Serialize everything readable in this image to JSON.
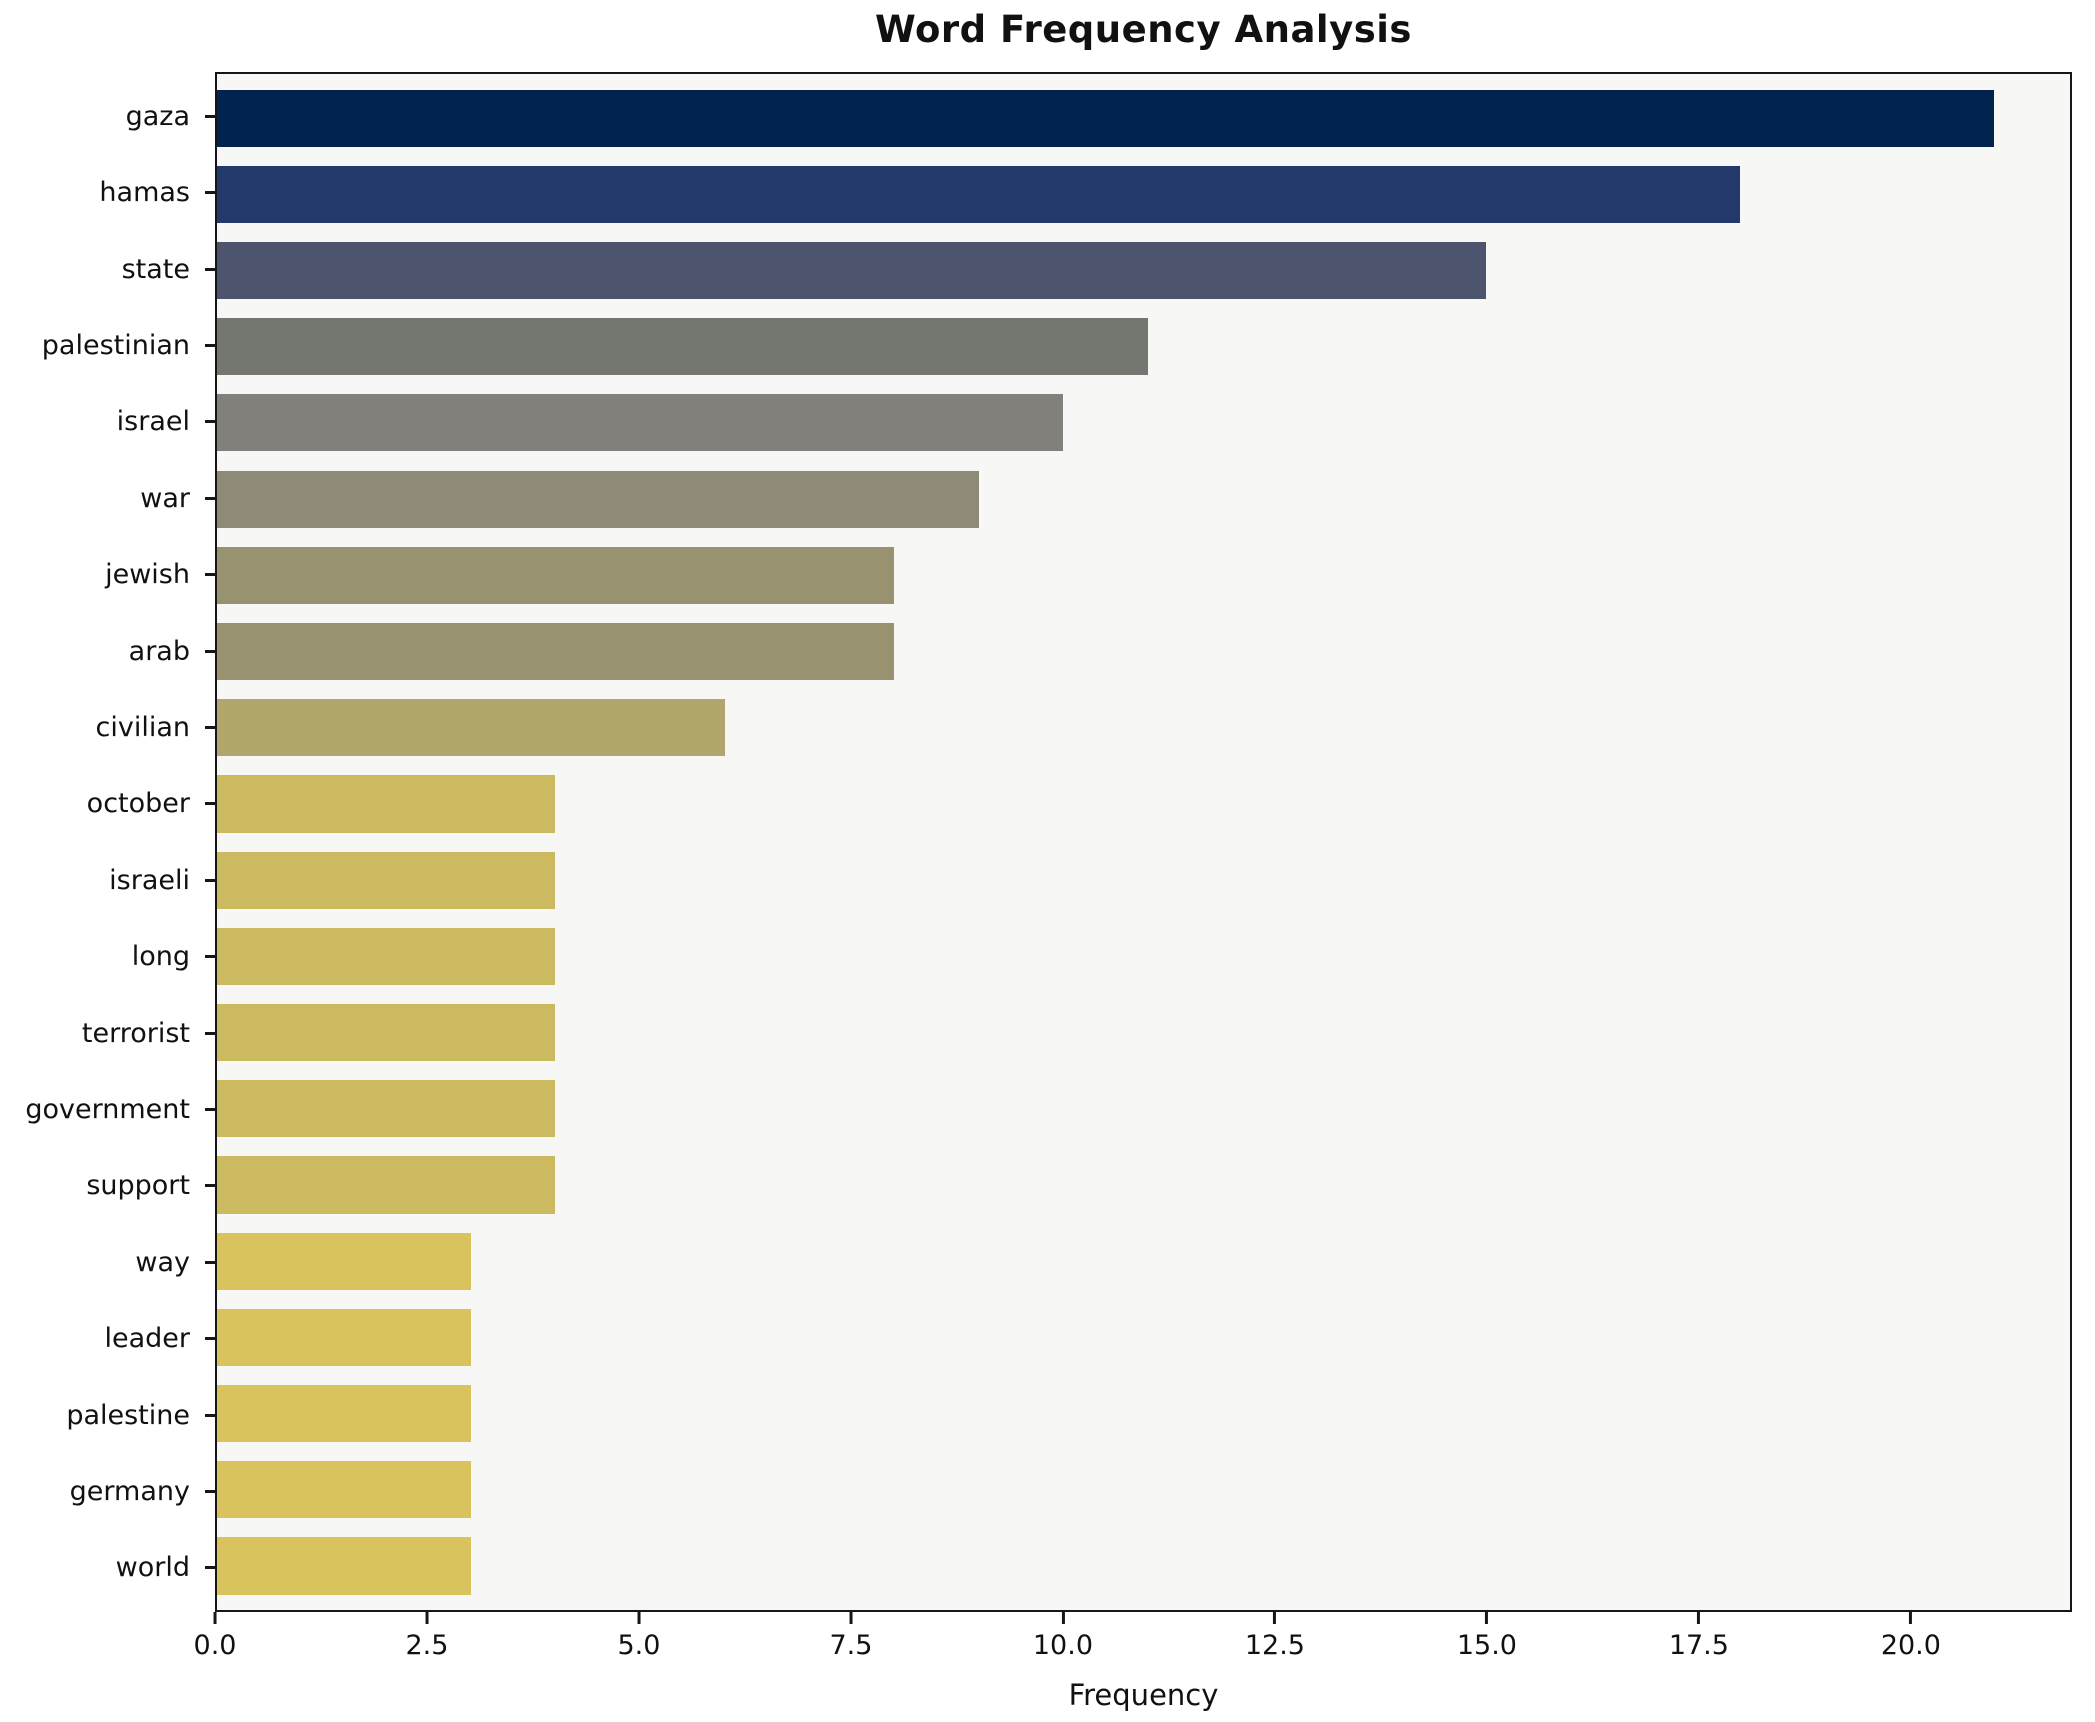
{
  "chart_data": {
    "type": "bar",
    "orientation": "horizontal",
    "title": "Word Frequency Analysis",
    "xlabel": "Frequency",
    "ylabel": "",
    "categories": [
      "gaza",
      "hamas",
      "state",
      "palestinian",
      "israel",
      "war",
      "jewish",
      "arab",
      "civilian",
      "october",
      "israeli",
      "long",
      "terrorist",
      "government",
      "support",
      "way",
      "leader",
      "palestine",
      "germany",
      "world"
    ],
    "values": [
      21,
      18,
      15,
      11,
      10,
      9,
      8,
      8,
      6,
      4,
      4,
      4,
      4,
      4,
      4,
      3,
      3,
      3,
      3,
      3
    ],
    "bar_colors": [
      "#02234e",
      "#24396b",
      "#4d546d",
      "#747670",
      "#81807a",
      "#8f8a78",
      "#989270",
      "#989270",
      "#b1a76c",
      "#ccba60",
      "#ccba60",
      "#ccba60",
      "#ccba60",
      "#ccba60",
      "#ccba60",
      "#d9c35c",
      "#d9c35c",
      "#d9c35c",
      "#d9c35c",
      "#d9c35c"
    ],
    "xlim": [
      0,
      21.9
    ],
    "xticks": [
      0.0,
      2.5,
      5.0,
      7.5,
      10.0,
      12.5,
      15.0,
      17.5,
      20.0
    ],
    "grid": false,
    "legend": "none",
    "plot_bg": "#f7f7f6",
    "figure_bg": "#ffffff",
    "spine_color": "#161616",
    "text_color": "#111111"
  }
}
